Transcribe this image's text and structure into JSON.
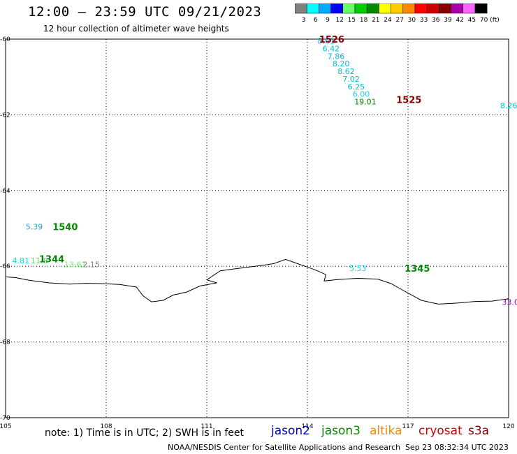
{
  "header": {
    "title": "12:00 — 23:59 UTC 09/21/2023",
    "subtitle": "12 hour collection of altimeter wave heights"
  },
  "legend": {
    "unit": "(ft)",
    "entries": [
      {
        "label": "3",
        "color": "#808080"
      },
      {
        "label": "6",
        "color": "#00ffff"
      },
      {
        "label": "9",
        "color": "#00aaff"
      },
      {
        "label": "12",
        "color": "#0000ff"
      },
      {
        "label": "15",
        "color": "#66ff66"
      },
      {
        "label": "18",
        "color": "#00cc00"
      },
      {
        "label": "21",
        "color": "#008800"
      },
      {
        "label": "24",
        "color": "#ffff00"
      },
      {
        "label": "27",
        "color": "#ffcc00"
      },
      {
        "label": "30",
        "color": "#ff8800"
      },
      {
        "label": "33",
        "color": "#ff0000"
      },
      {
        "label": "36",
        "color": "#cc0000"
      },
      {
        "label": "39",
        "color": "#880000"
      },
      {
        "label": "42",
        "color": "#aa00aa"
      },
      {
        "label": "45",
        "color": "#ff66ff"
      },
      {
        "label": "70",
        "color": "#000000"
      }
    ]
  },
  "map": {
    "lon_labels": [
      "105",
      "108",
      "111",
      "114",
      "117",
      "120"
    ],
    "lat_labels": [
      "-60",
      "-62",
      "-64",
      "-66",
      "-68",
      "-70"
    ],
    "lon_range": [
      105,
      120
    ],
    "lat_range": [
      -60,
      -70
    ],
    "observations": [
      {
        "text": "8.61",
        "lon": 114.3,
        "lat": -60.05,
        "color": "#00bbdd"
      },
      {
        "text": "6.42",
        "lon": 114.45,
        "lat": -60.25,
        "color": "#00bbdd"
      },
      {
        "text": "7.86",
        "lon": 114.6,
        "lat": -60.45,
        "color": "#00bbdd"
      },
      {
        "text": "8.20",
        "lon": 114.75,
        "lat": -60.65,
        "color": "#00bbdd"
      },
      {
        "text": "8.62",
        "lon": 114.9,
        "lat": -60.85,
        "color": "#00bbdd"
      },
      {
        "text": "7.02",
        "lon": 115.05,
        "lat": -61.05,
        "color": "#00bbdd"
      },
      {
        "text": "6.25",
        "lon": 115.2,
        "lat": -61.25,
        "color": "#00bbdd"
      },
      {
        "text": "6.00",
        "lon": 115.35,
        "lat": -61.45,
        "color": "#00ddee"
      },
      {
        "text": "19.01",
        "lon": 115.4,
        "lat": -61.65,
        "color": "#008800"
      },
      {
        "text": "8.26",
        "lon": 119.75,
        "lat": -61.75,
        "color": "#00bbdd"
      },
      {
        "text": "5.39",
        "lon": 105.6,
        "lat": -64.95,
        "color": "#00bbdd"
      },
      {
        "text": "4.81",
        "lon": 105.2,
        "lat": -65.85,
        "color": "#00ddee"
      },
      {
        "text": "11.8",
        "lon": 105.75,
        "lat": -65.85,
        "color": "#66cc66"
      },
      {
        "text": "13.61",
        "lon": 106.75,
        "lat": -65.95,
        "color": "#66ff66"
      },
      {
        "text": "2.15",
        "lon": 107.3,
        "lat": -65.95,
        "color": "#808080"
      },
      {
        "text": "5.53",
        "lon": 115.25,
        "lat": -66.05,
        "color": "#00ddee"
      },
      {
        "text": "33.0",
        "lon": 119.8,
        "lat": -66.95,
        "color": "#aa00aa"
      }
    ],
    "times": [
      {
        "text": "1526",
        "lon": 114.35,
        "lat": -60.0,
        "color": "#880000"
      },
      {
        "text": "1525",
        "lon": 116.65,
        "lat": -61.6,
        "color": "#880000"
      },
      {
        "text": "1540",
        "lon": 106.4,
        "lat": -64.95,
        "color": "#008800"
      },
      {
        "text": "1344",
        "lon": 106.0,
        "lat": -65.8,
        "color": "#008800"
      },
      {
        "text": "1345",
        "lon": 116.9,
        "lat": -66.05,
        "color": "#008800"
      }
    ],
    "coastline": [
      [
        105.0,
        -66.28
      ],
      [
        105.3,
        -66.3
      ],
      [
        105.7,
        -66.37
      ],
      [
        106.3,
        -66.44
      ],
      [
        106.9,
        -66.47
      ],
      [
        107.4,
        -66.45
      ],
      [
        107.9,
        -66.46
      ],
      [
        108.4,
        -66.48
      ],
      [
        108.9,
        -66.55
      ],
      [
        109.1,
        -66.78
      ],
      [
        109.35,
        -66.94
      ],
      [
        109.7,
        -66.9
      ],
      [
        110.0,
        -66.76
      ],
      [
        110.4,
        -66.68
      ],
      [
        110.8,
        -66.52
      ],
      [
        111.3,
        -66.44
      ],
      [
        111.0,
        -66.36
      ],
      [
        111.4,
        -66.12
      ],
      [
        111.9,
        -66.06
      ],
      [
        112.7,
        -65.97
      ],
      [
        113.0,
        -65.93
      ],
      [
        113.35,
        -65.82
      ],
      [
        113.7,
        -65.93
      ],
      [
        114.0,
        -66.02
      ],
      [
        114.3,
        -66.12
      ],
      [
        114.55,
        -66.22
      ],
      [
        114.5,
        -66.39
      ],
      [
        114.9,
        -66.35
      ],
      [
        115.5,
        -66.32
      ],
      [
        116.1,
        -66.34
      ],
      [
        116.5,
        -66.46
      ],
      [
        116.9,
        -66.66
      ],
      [
        117.4,
        -66.9
      ],
      [
        117.9,
        -67.0
      ],
      [
        118.5,
        -66.97
      ],
      [
        119.0,
        -66.93
      ],
      [
        119.5,
        -66.92
      ],
      [
        120.0,
        -66.86
      ]
    ]
  },
  "footer": {
    "note": "note:  1) Time is in UTC; 2) SWH is in feet",
    "satellites": [
      {
        "name": "jason2",
        "color": "#0000cc"
      },
      {
        "name": "jason3",
        "color": "#008800"
      },
      {
        "name": "altika",
        "color": "#ff8800"
      },
      {
        "name": "cryosat",
        "color": "#cc0000"
      },
      {
        "name": "s3a",
        "color": "#880000"
      }
    ],
    "credit": "NOAA/NESDIS Center for Satellite Applications and Research",
    "timestamp": "Sep 23 08:32:34 UTC 2023"
  }
}
